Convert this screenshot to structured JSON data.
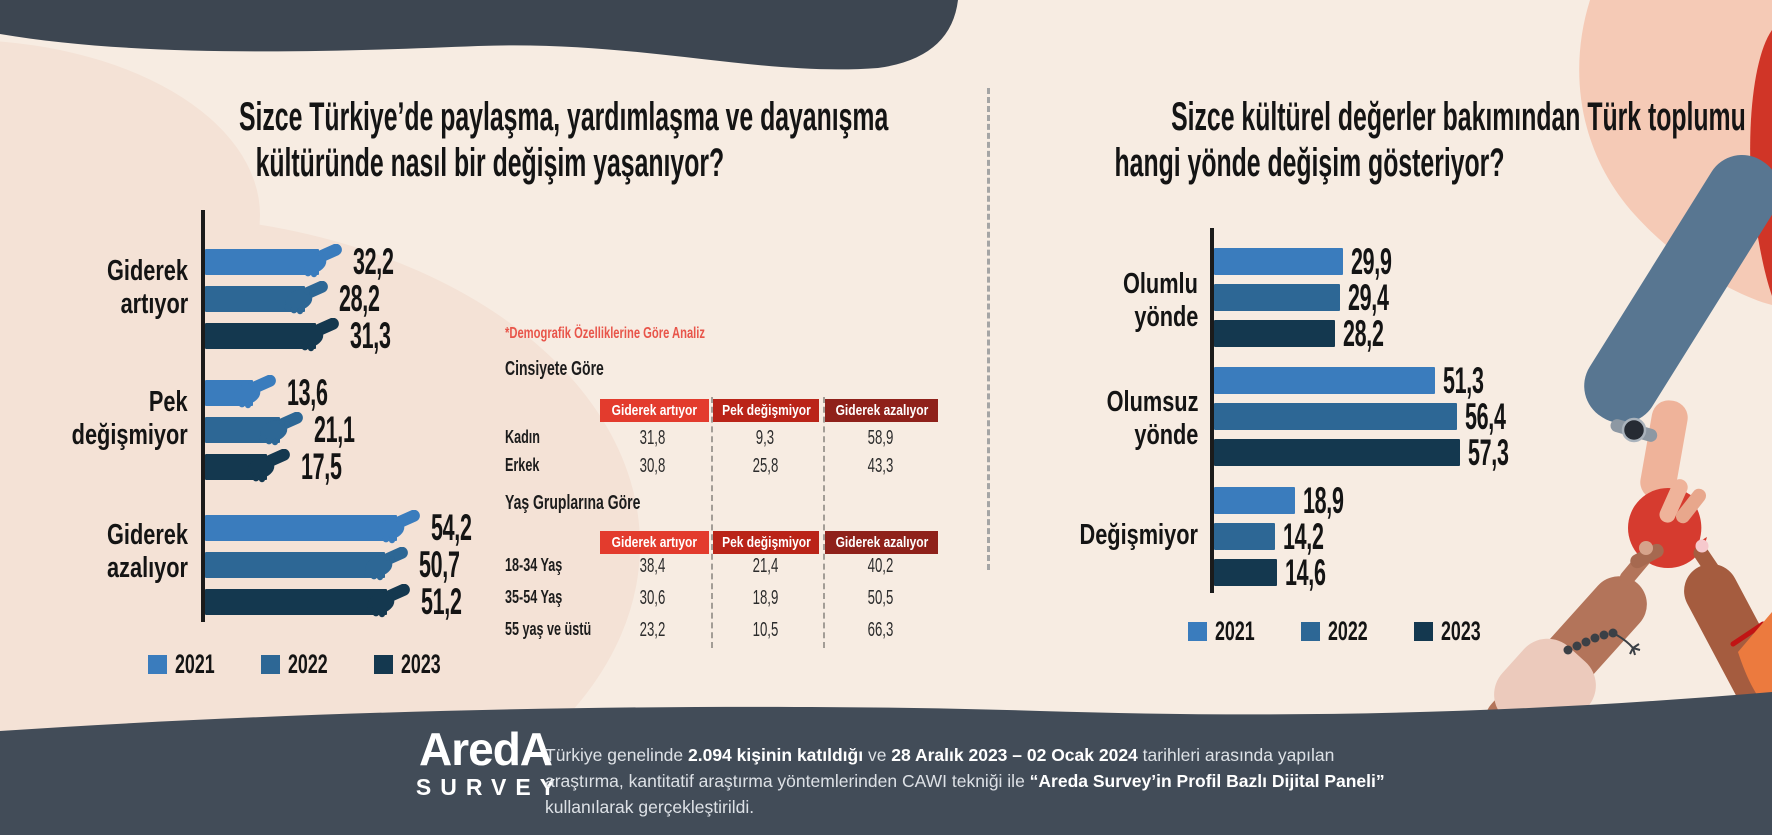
{
  "colors": {
    "background_cream": "#f7ece2",
    "background_pink_blob": "#f4e2d6",
    "top_band": "#3d4651",
    "footer_band": "#424c58",
    "series_2021": "#3a7cbd",
    "series_2022": "#2d6795",
    "series_2023": "#14384f",
    "table_header_red_bright": "#e33b2d",
    "table_header_red_mid": "#ba2418",
    "table_header_red_dark": "#8f211a",
    "note_red": "#e8554a",
    "ball_red": "#d63b2f"
  },
  "chart_data": [
    {
      "type": "bar",
      "orientation": "horizontal",
      "title": "Sizce Türkiye’de paylaşma, yardımlaşma ve dayanışma kültüründe nasıl bir değişim yaşanıyor?",
      "title_lines": [
        "Sizce Türkiye’de paylaşma, yardımlaşma ve dayanışma",
        "kültüründe nasıl bir değişim yaşanıyor?"
      ],
      "categories": [
        "Giderek artıyor",
        "Pek değişmiyor",
        "Giderek azalıyor"
      ],
      "category_label_lines": [
        [
          "Giderek",
          "artıyor"
        ],
        [
          "Pek",
          "değişmiyor"
        ],
        [
          "Giderek",
          "azalıyor"
        ]
      ],
      "series": [
        {
          "name": "2021",
          "color": "#3a7cbd",
          "values": [
            32.2,
            13.6,
            54.2
          ]
        },
        {
          "name": "2022",
          "color": "#2d6795",
          "values": [
            28.2,
            21.1,
            50.7
          ]
        },
        {
          "name": "2023",
          "color": "#14384f",
          "values": [
            31.3,
            17.5,
            51.2
          ]
        }
      ],
      "value_format": "decimal-comma",
      "xlim": [
        0,
        60
      ],
      "grid": false,
      "legend_position": "bottom",
      "bar_tip_icon": "handshake"
    },
    {
      "type": "bar",
      "orientation": "horizontal",
      "title": "Sizce kültürel değerler bakımından Türk toplumu hangi yönde değişim gösteriyor?",
      "title_lines": [
        "Sizce kültürel değerler bakımından Türk toplumu",
        "hangi yönde değişim gösteriyor?"
      ],
      "categories": [
        "Olumlu yönde",
        "Olumsuz yönde",
        "Değişmiyor"
      ],
      "category_label_lines": [
        [
          "Olumlu",
          "yönde"
        ],
        [
          "Olumsuz",
          "yönde"
        ],
        [
          "Değişmiyor"
        ]
      ],
      "series": [
        {
          "name": "2021",
          "color": "#3a7cbd",
          "values": [
            29.9,
            51.3,
            18.9
          ]
        },
        {
          "name": "2022",
          "color": "#2d6795",
          "values": [
            29.4,
            56.4,
            14.2
          ]
        },
        {
          "name": "2023",
          "color": "#14384f",
          "values": [
            28.2,
            57.3,
            14.6
          ]
        }
      ],
      "value_format": "decimal-comma",
      "xlim": [
        0,
        60
      ],
      "grid": false,
      "legend_position": "bottom",
      "bar_tip_icon": "none"
    }
  ],
  "demographics": {
    "note": "*Demografik Özelliklerine Göre Analiz",
    "col_headers": [
      "Giderek artıyor",
      "Pek değişmiyor",
      "Giderek azalıyor"
    ],
    "header_colors": [
      "#e33b2d",
      "#ba2418",
      "#8f211a"
    ],
    "sections": [
      {
        "title": "Cinsiyete Göre",
        "rows": [
          {
            "label": "Kadın",
            "values": [
              31.8,
              9.3,
              58.9
            ]
          },
          {
            "label": "Erkek",
            "values": [
              30.8,
              25.8,
              43.3
            ]
          }
        ]
      },
      {
        "title": "Yaş Gruplarına Göre",
        "rows": [
          {
            "label": "18-34 Yaş",
            "values": [
              38.4,
              21.4,
              40.2
            ]
          },
          {
            "label": "35-54 Yaş",
            "values": [
              30.6,
              18.9,
              50.5
            ]
          },
          {
            "label": "55 yaş ve üstü",
            "values": [
              23.2,
              10.5,
              66.3
            ]
          }
        ]
      }
    ]
  },
  "footer": {
    "logo_line1": "AredA",
    "logo_line2": "SURVEY",
    "text_runs": [
      {
        "t": "Türkiye genelinde ",
        "b": false
      },
      {
        "t": "2.094 kişinin katıldığı",
        "b": true
      },
      {
        "t": " ve ",
        "b": false
      },
      {
        "t": "28 Aralık 2023 – 02 Ocak 2024",
        "b": true
      },
      {
        "t": " tarihleri arasında yapılan araştırma, kantitatif araştırma yöntemlerinden CAWI tekniği ile ",
        "b": false
      },
      {
        "t": "“Areda Survey’in Profil Bazlı Dijital Paneli”",
        "b": true
      },
      {
        "t": " kullanılarak gerçekleştirildi.",
        "b": false
      }
    ]
  }
}
